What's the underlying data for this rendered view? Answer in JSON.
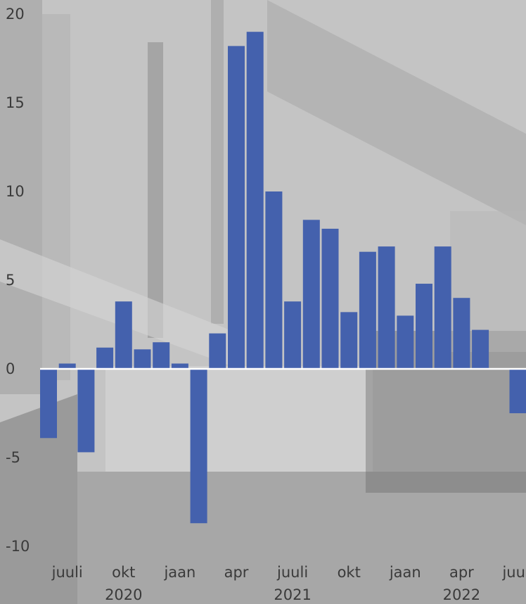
{
  "chart_data": {
    "type": "bar",
    "title": "",
    "xlabel": "",
    "ylabel": "",
    "ylim": [
      -10,
      20
    ],
    "y_ticks": [
      "-10",
      "-5",
      "0",
      "5",
      "10",
      "15",
      "20"
    ],
    "y_tick_values": [
      -10,
      -5,
      0,
      5,
      10,
      15,
      20
    ],
    "categories": [
      "2020-06",
      "2020-07",
      "2020-08",
      "2020-09",
      "2020-10",
      "2020-11",
      "2020-12",
      "2021-01",
      "2021-02",
      "2021-03",
      "2021-04",
      "2021-05",
      "2021-06",
      "2021-07",
      "2021-08",
      "2021-09",
      "2021-10",
      "2021-11",
      "2021-12",
      "2022-01",
      "2022-02",
      "2022-03",
      "2022-04",
      "2022-05",
      "2022-06",
      "2022-07"
    ],
    "values": [
      -3.9,
      0.3,
      -4.7,
      1.2,
      3.8,
      1.1,
      1.5,
      0.3,
      -8.7,
      2.0,
      18.2,
      19.0,
      10.0,
      3.8,
      8.4,
      7.9,
      3.2,
      6.6,
      6.9,
      3.0,
      4.8,
      6.9,
      4.0,
      2.2,
      0.0,
      -2.5
    ],
    "x_tick_labels": [
      {
        "label": "juuli",
        "category": "2020-07"
      },
      {
        "label": "okt",
        "category": "2020-10"
      },
      {
        "label": "jaan",
        "category": "2021-01"
      },
      {
        "label": "apr",
        "category": "2021-04"
      },
      {
        "label": "juuli",
        "category": "2021-07"
      },
      {
        "label": "okt",
        "category": "2021-10"
      },
      {
        "label": "jaan",
        "category": "2022-01"
      },
      {
        "label": "apr",
        "category": "2022-04"
      },
      {
        "label": "juuli",
        "category": "2022-07"
      }
    ],
    "year_labels": [
      {
        "label": "2020",
        "category": "2020-10"
      },
      {
        "label": "2021",
        "category": "2021-07"
      },
      {
        "label": "2022",
        "category": "2022-04"
      }
    ],
    "bar_color": "#4461ad",
    "zero_line_color": "#ffffff",
    "grid": false,
    "legend": "none"
  }
}
